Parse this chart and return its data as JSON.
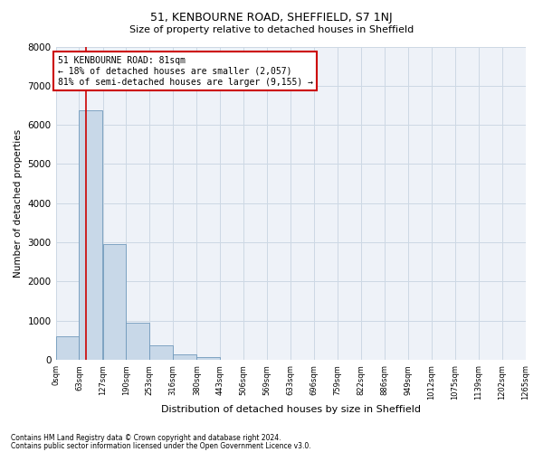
{
  "title1": "51, KENBOURNE ROAD, SHEFFIELD, S7 1NJ",
  "title2": "Size of property relative to detached houses in Sheffield",
  "xlabel": "Distribution of detached houses by size in Sheffield",
  "ylabel": "Number of detached properties",
  "footnote1": "Contains HM Land Registry data © Crown copyright and database right 2024.",
  "footnote2": "Contains public sector information licensed under the Open Government Licence v3.0.",
  "bin_edges": [
    0,
    63,
    127,
    190,
    253,
    316,
    380,
    443,
    506,
    569,
    633,
    696,
    759,
    822,
    886,
    949,
    1012,
    1075,
    1139,
    1202,
    1265
  ],
  "bar_heights": [
    600,
    6380,
    2950,
    950,
    370,
    150,
    70,
    0,
    0,
    0,
    0,
    0,
    0,
    0,
    0,
    0,
    0,
    0,
    0,
    0
  ],
  "bar_color": "#c8d8e8",
  "bar_edge_color": "#7099bb",
  "grid_color": "#ccd8e4",
  "background_color": "#eef2f8",
  "property_size": 81,
  "red_line_color": "#cc0000",
  "annotation_text": "51 KENBOURNE ROAD: 81sqm\n← 18% of detached houses are smaller (2,057)\n81% of semi-detached houses are larger (9,155) →",
  "annotation_box_color": "#ffffff",
  "annotation_box_edge": "#cc0000",
  "ylim": [
    0,
    8000
  ],
  "yticks": [
    0,
    1000,
    2000,
    3000,
    4000,
    5000,
    6000,
    7000,
    8000
  ]
}
